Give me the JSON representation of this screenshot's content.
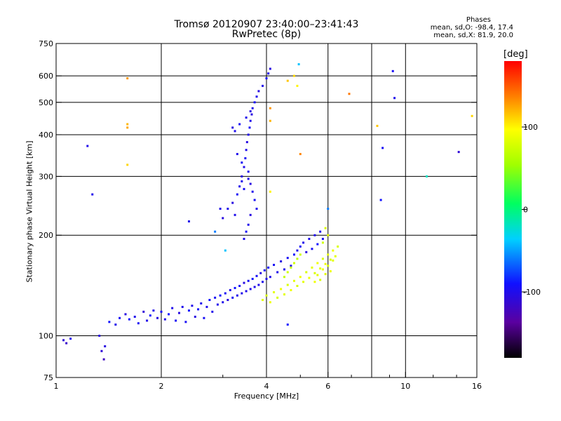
{
  "header": {
    "title": "Tromsø 20120907 23:40:00–23:41:43",
    "subtitle": "RwPretec (8p)"
  },
  "stats": {
    "title": "Phases",
    "o_line": "mean, sd,O: -98.4, 17.4",
    "x_line": "mean, sd,X:  81.9, 20.0"
  },
  "colorbar": {
    "title": "[deg]",
    "range": [
      -180,
      180
    ],
    "ticks": [
      {
        "value": 100,
        "label": "100"
      },
      {
        "value": 0,
        "label": "0"
      },
      {
        "value": -100,
        "label": "-100"
      }
    ]
  },
  "chart_data": {
    "type": "scatter",
    "title": "Tromsø 20120907 23:40:00–23:41:43",
    "subtitle": "RwPretec (8p)",
    "xlabel": "Frequency [MHz]",
    "ylabel": "Stationary phase Virtual Height [km]",
    "x_scale": "log",
    "y_scale": "log",
    "xlim": [
      1,
      16
    ],
    "ylim": [
      75,
      750
    ],
    "grid": true,
    "colorbar_label": "[deg]",
    "color_range": [
      -180,
      180
    ],
    "x_ticks": [
      {
        "value": 1,
        "label": "1"
      },
      {
        "value": 2,
        "label": "2"
      },
      {
        "value": 4,
        "label": "4"
      },
      {
        "value": 6,
        "label": "6"
      },
      {
        "value": 10,
        "label": "10"
      },
      {
        "value": 16,
        "label": "16"
      }
    ],
    "x_minor_ticks": [
      3,
      5,
      7,
      8,
      9,
      12,
      14
    ],
    "x_gridlines": [
      2,
      4,
      6,
      8,
      10
    ],
    "y_ticks": [
      {
        "value": 75,
        "label": "75"
      },
      {
        "value": 100,
        "label": "100"
      },
      {
        "value": 200,
        "label": "200"
      },
      {
        "value": 300,
        "label": "300"
      },
      {
        "value": 400,
        "label": "400"
      },
      {
        "value": 500,
        "label": "500"
      },
      {
        "value": 600,
        "label": "600"
      },
      {
        "value": 750,
        "label": "750"
      }
    ],
    "y_gridlines": [
      100,
      200,
      300,
      400,
      500,
      600
    ],
    "series": [
      {
        "points": [
          [
            1.05,
            97,
            -110
          ],
          [
            1.07,
            95,
            -115
          ],
          [
            1.1,
            98,
            -100
          ],
          [
            1.33,
            100,
            -105
          ],
          [
            1.35,
            90,
            -110
          ],
          [
            1.37,
            85,
            -120
          ],
          [
            1.38,
            93,
            -105
          ],
          [
            1.42,
            110,
            -90
          ],
          [
            1.48,
            108,
            -100
          ],
          [
            1.52,
            113,
            -95
          ],
          [
            1.58,
            116,
            -105
          ],
          [
            1.62,
            112,
            -90
          ],
          [
            1.68,
            114,
            -100
          ],
          [
            1.72,
            109,
            -95
          ],
          [
            1.78,
            118,
            -110
          ],
          [
            1.82,
            111,
            -100
          ],
          [
            1.86,
            115,
            -90
          ],
          [
            1.9,
            119,
            -100
          ],
          [
            1.95,
            113,
            -105
          ],
          [
            2.0,
            118,
            -95
          ],
          [
            2.05,
            112,
            -100
          ],
          [
            2.1,
            116,
            -90
          ],
          [
            2.15,
            121,
            -100
          ],
          [
            2.2,
            111,
            -95
          ],
          [
            2.25,
            117,
            -105
          ],
          [
            2.3,
            122,
            -100
          ],
          [
            2.35,
            110,
            -95
          ],
          [
            2.4,
            119,
            -90
          ],
          [
            2.45,
            123,
            -100
          ],
          [
            2.5,
            114,
            -105
          ],
          [
            2.55,
            120,
            -90
          ],
          [
            2.6,
            125,
            -100
          ],
          [
            2.65,
            113,
            -95
          ],
          [
            2.7,
            122,
            -100
          ],
          [
            2.75,
            128,
            -90
          ],
          [
            2.8,
            118,
            -100
          ],
          [
            2.85,
            130,
            -95
          ],
          [
            2.9,
            124,
            -100
          ],
          [
            2.95,
            132,
            -90
          ],
          [
            3.0,
            126,
            -100
          ],
          [
            3.05,
            134,
            -95
          ],
          [
            3.1,
            128,
            -105
          ],
          [
            3.15,
            137,
            -100
          ],
          [
            3.2,
            130,
            -95
          ],
          [
            3.25,
            139,
            -90
          ],
          [
            3.3,
            132,
            -100
          ],
          [
            3.35,
            141,
            -95
          ],
          [
            3.4,
            134,
            -100
          ],
          [
            3.45,
            144,
            -105
          ],
          [
            3.5,
            136,
            -100
          ],
          [
            3.55,
            146,
            -95
          ],
          [
            3.6,
            138,
            -100
          ],
          [
            3.65,
            148,
            -90
          ],
          [
            3.7,
            140,
            -100
          ],
          [
            3.75,
            151,
            -95
          ],
          [
            3.8,
            142,
            -100
          ],
          [
            3.85,
            154,
            -105
          ],
          [
            3.9,
            145,
            -100
          ],
          [
            3.95,
            157,
            -95
          ],
          [
            4.0,
            148,
            -100
          ],
          [
            4.05,
            160,
            -90
          ],
          [
            4.1,
            150,
            -100
          ],
          [
            4.2,
            163,
            -95
          ],
          [
            4.3,
            155,
            -100
          ],
          [
            4.4,
            167,
            -105
          ],
          [
            4.5,
            158,
            -100
          ],
          [
            4.6,
            171,
            -95
          ],
          [
            4.7,
            162,
            -100
          ],
          [
            4.8,
            175,
            -90
          ],
          [
            4.9,
            180,
            -100
          ],
          [
            5.0,
            185,
            -95
          ],
          [
            5.1,
            190,
            -100
          ],
          [
            5.2,
            178,
            -105
          ],
          [
            5.3,
            195,
            -100
          ],
          [
            5.4,
            182,
            -95
          ],
          [
            5.5,
            200,
            -100
          ],
          [
            5.6,
            188,
            -90
          ],
          [
            5.7,
            205,
            -100
          ],
          [
            5.8,
            195,
            -95
          ],
          [
            3.1,
            240,
            -100
          ],
          [
            3.2,
            250,
            -105
          ],
          [
            3.25,
            230,
            -100
          ],
          [
            3.3,
            265,
            -95
          ],
          [
            3.35,
            280,
            -100
          ],
          [
            3.4,
            300,
            -105
          ],
          [
            3.45,
            320,
            -100
          ],
          [
            3.48,
            340,
            -95
          ],
          [
            3.5,
            360,
            -100
          ],
          [
            3.52,
            380,
            -105
          ],
          [
            3.55,
            400,
            -100
          ],
          [
            3.58,
            420,
            -95
          ],
          [
            3.6,
            440,
            -100
          ],
          [
            3.63,
            460,
            -105
          ],
          [
            3.65,
            480,
            -100
          ],
          [
            3.7,
            500,
            -95
          ],
          [
            3.75,
            520,
            -100
          ],
          [
            3.8,
            540,
            -105
          ],
          [
            3.9,
            560,
            -100
          ],
          [
            4.0,
            590,
            -95
          ],
          [
            4.05,
            610,
            -100
          ],
          [
            4.1,
            630,
            -105
          ],
          [
            3.4,
            290,
            -100
          ],
          [
            3.45,
            275,
            -95
          ],
          [
            3.55,
            295,
            -100
          ],
          [
            3.6,
            285,
            -105
          ],
          [
            3.65,
            270,
            -100
          ],
          [
            3.7,
            255,
            -95
          ],
          [
            3.75,
            240,
            -100
          ],
          [
            3.6,
            230,
            -105
          ],
          [
            3.55,
            215,
            -100
          ],
          [
            3.5,
            205,
            -95
          ],
          [
            3.45,
            195,
            -100
          ],
          [
            3.2,
            420,
            -105
          ],
          [
            3.25,
            410,
            -100
          ],
          [
            3.35,
            430,
            -95
          ],
          [
            3.5,
            450,
            -100
          ],
          [
            3.6,
            470,
            -105
          ],
          [
            3.3,
            350,
            -100
          ],
          [
            3.4,
            330,
            -95
          ],
          [
            3.55,
            310,
            -100
          ],
          [
            2.95,
            240,
            -100
          ],
          [
            3.0,
            225,
            -105
          ],
          [
            2.4,
            220,
            -100
          ]
        ]
      },
      {
        "points": [
          [
            3.9,
            128,
            85
          ],
          [
            4.0,
            132,
            80
          ],
          [
            4.1,
            126,
            90
          ],
          [
            4.2,
            135,
            85
          ],
          [
            4.3,
            130,
            80
          ],
          [
            4.4,
            138,
            90
          ],
          [
            4.5,
            133,
            85
          ],
          [
            4.6,
            142,
            80
          ],
          [
            4.7,
            137,
            90
          ],
          [
            4.8,
            146,
            85
          ],
          [
            4.9,
            141,
            80
          ],
          [
            5.0,
            150,
            90
          ],
          [
            5.1,
            145,
            85
          ],
          [
            5.2,
            155,
            80
          ],
          [
            5.3,
            149,
            90
          ],
          [
            5.4,
            160,
            85
          ],
          [
            5.5,
            154,
            80
          ],
          [
            5.6,
            165,
            90
          ],
          [
            5.7,
            159,
            85
          ],
          [
            5.8,
            170,
            80
          ],
          [
            5.9,
            164,
            90
          ],
          [
            6.0,
            175,
            85
          ],
          [
            6.1,
            169,
            80
          ],
          [
            6.2,
            180,
            90
          ],
          [
            6.3,
            173,
            85
          ],
          [
            6.4,
            185,
            80
          ],
          [
            5.5,
            145,
            90
          ],
          [
            5.6,
            152,
            85
          ],
          [
            5.7,
            147,
            80
          ],
          [
            5.8,
            158,
            90
          ],
          [
            5.9,
            153,
            85
          ],
          [
            6.0,
            162,
            80
          ],
          [
            6.1,
            156,
            90
          ],
          [
            6.2,
            168,
            85
          ],
          [
            4.5,
            150,
            70
          ],
          [
            4.6,
            155,
            75
          ],
          [
            4.7,
            160,
            70
          ],
          [
            4.8,
            165,
            75
          ],
          [
            4.9,
            170,
            70
          ],
          [
            5.0,
            175,
            75
          ],
          [
            5.9,
            210,
            80
          ],
          [
            6.0,
            200,
            85
          ],
          [
            5.8,
            190,
            75
          ]
        ]
      },
      {
        "points": [
          [
            1.6,
            590,
            130
          ],
          [
            1.6,
            430,
            120
          ],
          [
            1.6,
            420,
            125
          ],
          [
            1.6,
            325,
            110
          ],
          [
            4.1,
            480,
            130
          ],
          [
            4.1,
            440,
            120
          ],
          [
            4.8,
            600,
            110
          ],
          [
            4.6,
            580,
            115
          ],
          [
            5.0,
            350,
            135
          ],
          [
            6.9,
            530,
            140
          ],
          [
            8.3,
            425,
            115
          ],
          [
            4.1,
            270,
            100
          ],
          [
            15.5,
            455,
            110
          ],
          [
            4.9,
            560,
            100
          ]
        ]
      },
      {
        "points": [
          [
            1.23,
            370,
            -100
          ],
          [
            1.27,
            265,
            -100
          ],
          [
            8.6,
            365,
            -95
          ],
          [
            8.5,
            255,
            -90
          ],
          [
            9.2,
            620,
            -95
          ],
          [
            9.3,
            515,
            -100
          ],
          [
            11.5,
            300,
            -20
          ],
          [
            14.2,
            355,
            -110
          ],
          [
            4.6,
            108,
            -90
          ],
          [
            4.95,
            650,
            -40
          ],
          [
            6.0,
            240,
            -60
          ],
          [
            2.85,
            205,
            -60
          ],
          [
            3.05,
            180,
            -40
          ]
        ]
      }
    ]
  }
}
